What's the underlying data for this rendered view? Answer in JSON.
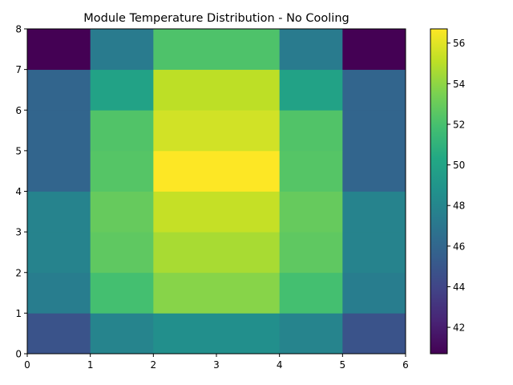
{
  "chart_data": {
    "type": "heatmap",
    "title": "Module Temperature Distribution - No Cooling",
    "xlabel": "",
    "ylabel": "",
    "x_edges": [
      0,
      1,
      2,
      3,
      4,
      5,
      6
    ],
    "y_edges": [
      0,
      1,
      2,
      3,
      4,
      5,
      6,
      7,
      8
    ],
    "xlim": [
      0,
      6
    ],
    "ylim": [
      0,
      8
    ],
    "x_ticks": [
      "0",
      "1",
      "2",
      "3",
      "4",
      "5",
      "6"
    ],
    "y_ticks": [
      "0",
      "1",
      "2",
      "3",
      "4",
      "5",
      "6",
      "7",
      "8"
    ],
    "values_by_row_from_bottom": [
      [
        44.8,
        47.9,
        48.6,
        48.6,
        47.9,
        44.8
      ],
      [
        47.4,
        51.9,
        53.8,
        53.8,
        51.9,
        47.4
      ],
      [
        47.8,
        52.7,
        54.6,
        54.6,
        52.7,
        47.8
      ],
      [
        47.8,
        52.9,
        55.3,
        55.3,
        52.9,
        47.8
      ],
      [
        45.9,
        52.4,
        56.7,
        56.7,
        52.4,
        45.9
      ],
      [
        45.9,
        52.3,
        55.6,
        55.6,
        52.3,
        45.9
      ],
      [
        45.9,
        49.9,
        55.1,
        55.1,
        49.9,
        45.9
      ],
      [
        40.7,
        47.3,
        52.2,
        52.2,
        47.3,
        40.7
      ]
    ],
    "colormap": "viridis",
    "colorbar": {
      "vmin": 40.7,
      "vmax": 56.7,
      "ticks": [
        42,
        44,
        46,
        48,
        50,
        52,
        54,
        56
      ]
    },
    "grid": false
  }
}
